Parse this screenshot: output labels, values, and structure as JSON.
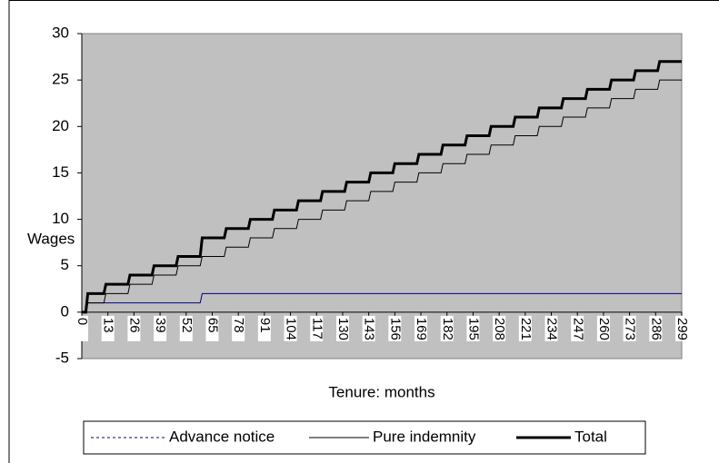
{
  "chart_data": {
    "type": "line",
    "y_label": "Wages",
    "x_label": "Tenure: months",
    "x": [
      0,
      2,
      3,
      11,
      12,
      23,
      24,
      35,
      36,
      47,
      48,
      59,
      60,
      71,
      72,
      83,
      84,
      95,
      96,
      107,
      108,
      119,
      120,
      131,
      132,
      143,
      144,
      155,
      156,
      167,
      168,
      179,
      180,
      191,
      192,
      203,
      204,
      215,
      216,
      227,
      228,
      239,
      240,
      251,
      252,
      263,
      264,
      275,
      276,
      287,
      288,
      299
    ],
    "series": [
      {
        "name": "Advance notice",
        "color": "#000080",
        "width": 1,
        "values": [
          0,
          0,
          1,
          1,
          1,
          1,
          1,
          1,
          1,
          1,
          1,
          1,
          2,
          2,
          2,
          2,
          2,
          2,
          2,
          2,
          2,
          2,
          2,
          2,
          2,
          2,
          2,
          2,
          2,
          2,
          2,
          2,
          2,
          2,
          2,
          2,
          2,
          2,
          2,
          2,
          2,
          2,
          2,
          2,
          2,
          2,
          2,
          2,
          2,
          2,
          2,
          2
        ]
      },
      {
        "name": "Pure indemnity",
        "color": "#000000",
        "width": 1,
        "values": [
          0,
          0,
          1,
          1,
          2,
          2,
          3,
          3,
          4,
          4,
          5,
          5,
          6,
          6,
          7,
          7,
          8,
          8,
          9,
          9,
          10,
          10,
          11,
          11,
          12,
          12,
          13,
          13,
          14,
          14,
          15,
          15,
          16,
          16,
          17,
          17,
          18,
          18,
          19,
          19,
          20,
          20,
          21,
          21,
          22,
          22,
          23,
          23,
          24,
          24,
          25,
          25
        ]
      },
      {
        "name": "Total",
        "color": "#000000",
        "width": 3,
        "values": [
          0,
          0,
          2,
          2,
          3,
          3,
          4,
          4,
          5,
          5,
          6,
          6,
          8,
          8,
          9,
          9,
          10,
          10,
          11,
          11,
          12,
          12,
          13,
          13,
          14,
          14,
          15,
          15,
          16,
          16,
          17,
          17,
          18,
          18,
          19,
          19,
          20,
          20,
          21,
          21,
          22,
          22,
          23,
          23,
          24,
          24,
          25,
          25,
          26,
          26,
          27,
          27
        ]
      }
    ],
    "xlim": [
      0,
      299
    ],
    "xticks": [
      0,
      13,
      26,
      39,
      52,
      65,
      78,
      91,
      104,
      117,
      130,
      143,
      156,
      169,
      182,
      195,
      208,
      221,
      234,
      247,
      260,
      273,
      286,
      299
    ],
    "ylim": [
      -5,
      30
    ],
    "yticks": [
      -5,
      0,
      5,
      10,
      15,
      20,
      25,
      30
    ],
    "plot_background": "#c0c0c0"
  }
}
